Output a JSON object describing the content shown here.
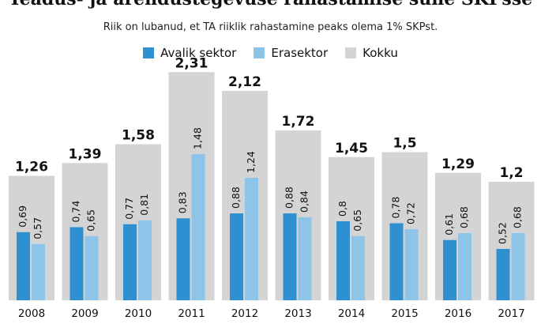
{
  "chart_data": {
    "type": "bar",
    "title": "Teadus- ja arendustegevuse rahastamise suhe SKPsse",
    "subtitle": "Riik on lubanud, et TA riiklik rahastamine peaks olema 1% SKPst.",
    "categories": [
      "2008",
      "2009",
      "2010",
      "2011",
      "2012",
      "2013",
      "2014",
      "2015",
      "2016",
      "2017"
    ],
    "series": [
      {
        "name": "Avalik sektor",
        "values": [
          0.69,
          0.74,
          0.77,
          0.83,
          0.88,
          0.88,
          0.8,
          0.78,
          0.61,
          0.52
        ],
        "labels": [
          "0,69",
          "0,74",
          "0,77",
          "0,83",
          "0,88",
          "0,88",
          "0,8",
          "0,78",
          "0,61",
          "0,52"
        ],
        "color": "#2e8fd1"
      },
      {
        "name": "Erasektor",
        "values": [
          0.57,
          0.65,
          0.81,
          1.48,
          1.24,
          0.84,
          0.65,
          0.72,
          0.68,
          0.68
        ],
        "labels": [
          "0,57",
          "0,65",
          "0,81",
          "1,48",
          "1,24",
          "0,84",
          "0,65",
          "0,72",
          "0,68",
          "0,68"
        ],
        "color": "#8dc4e8"
      },
      {
        "name": "Kokku",
        "values": [
          1.26,
          1.39,
          1.58,
          2.31,
          2.12,
          1.72,
          1.45,
          1.5,
          1.29,
          1.2
        ],
        "labels": [
          "1,26",
          "1,39",
          "1,58",
          "2,31",
          "2,12",
          "1,72",
          "1,45",
          "1,5",
          "1,29",
          "1,2"
        ],
        "color": "#d4d4d4"
      }
    ],
    "ylim": [
      0,
      2.4
    ],
    "grid": false,
    "legend_position": "top-center"
  }
}
